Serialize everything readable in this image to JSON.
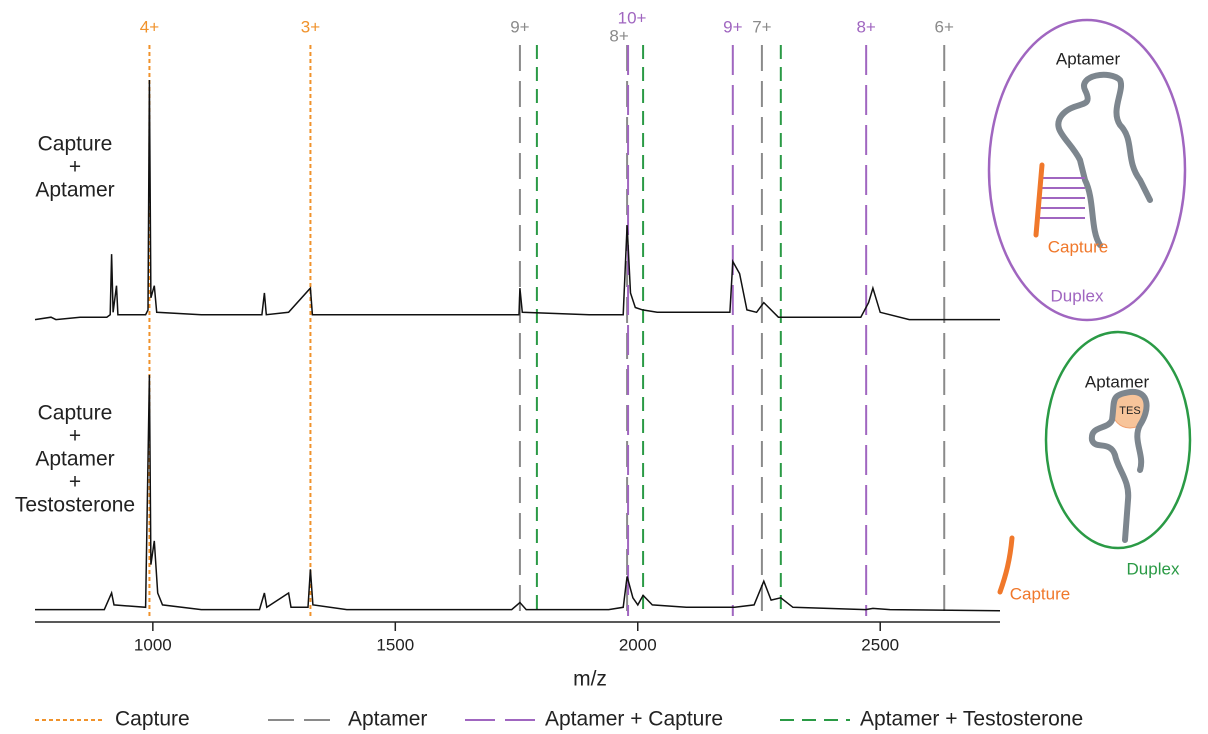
{
  "chart_data": {
    "type": "line",
    "xlabel": "m/z",
    "xlim": [
      757,
      2747
    ],
    "xticks": [
      1000,
      1500,
      2000,
      2500
    ],
    "ylim": [
      0,
      100
    ],
    "line_color": "#111111",
    "panels": [
      {
        "label": [
          "Capture",
          "+",
          "Aptamer"
        ],
        "x": [
          757,
          790,
          800,
          850,
          905,
          912,
          915,
          918,
          925,
          928,
          985,
          990,
          993,
          996,
          1003,
          1008,
          1100,
          1225,
          1230,
          1234,
          1280,
          1325,
          1329,
          1500,
          1700,
          1755,
          1757,
          1762,
          1900,
          1970,
          1978,
          1985,
          1995,
          2010,
          2040,
          2150,
          2190,
          2196,
          2210,
          2225,
          2245,
          2260,
          2270,
          2290,
          2460,
          2476,
          2485,
          2500,
          2560,
          2747
        ],
        "values": [
          1,
          2,
          1,
          2,
          2,
          3,
          28,
          4,
          15,
          3,
          3,
          5,
          100,
          10,
          15,
          4,
          3,
          3,
          12,
          3,
          4,
          14,
          3,
          3,
          3,
          3,
          14,
          4,
          3,
          3,
          40,
          12,
          6,
          5,
          4,
          4,
          4,
          25,
          20,
          5,
          4,
          8,
          6,
          2,
          2,
          8,
          14,
          4,
          1,
          1
        ]
      },
      {
        "label": [
          "Capture",
          "+",
          "Aptamer",
          "+",
          "Testosterone"
        ],
        "x": [
          757,
          800,
          900,
          915,
          920,
          985,
          993,
          996,
          1003,
          1010,
          1020,
          1100,
          1220,
          1230,
          1235,
          1280,
          1285,
          1320,
          1325,
          1330,
          1400,
          1740,
          1757,
          1770,
          1940,
          1970,
          1978,
          1990,
          2000,
          2011,
          2030,
          2100,
          2200,
          2240,
          2260,
          2275,
          2295,
          2320,
          2470,
          2485,
          2520,
          2747
        ],
        "values": [
          1,
          1,
          1,
          8,
          3,
          2,
          100,
          20,
          30,
          8,
          3,
          1,
          1,
          8,
          2,
          8,
          2,
          2,
          18,
          3,
          1,
          1,
          4,
          1,
          1,
          2,
          15,
          6,
          3,
          7,
          3,
          2,
          2,
          3,
          13,
          5,
          6,
          2,
          1,
          1.5,
          1,
          0.5
        ]
      }
    ],
    "reference_lines": [
      {
        "name": "Capture",
        "color": "#f0922b",
        "dash": "4,3",
        "x": [
          993,
          1325
        ],
        "labels": [
          "4+",
          "3+"
        ]
      },
      {
        "name": "Aptamer",
        "color": "#8a8a8a",
        "dash": "26,10",
        "x": [
          1757,
          1978,
          2256,
          2632
        ],
        "labels": [
          "9+",
          "8+",
          "7+",
          "6+"
        ]
      },
      {
        "name": "Aptamer + Capture",
        "color": "#a066c0",
        "dash": "30,10",
        "x": [
          1980,
          2196,
          2471
        ],
        "labels": [
          "10+",
          "9+",
          "8+"
        ]
      },
      {
        "name": "Aptamer + Testosterone",
        "color": "#2a9a45",
        "dash": "14,8",
        "x": [
          1792,
          2011,
          2295
        ]
      }
    ]
  },
  "diagrams": [
    {
      "aptamer": "Aptamer",
      "capture": "Capture",
      "caption": "Duplex"
    },
    {
      "aptamer": "Aptamer",
      "ligand": "TES",
      "capture": "Capture",
      "caption": "Duplex"
    }
  ]
}
